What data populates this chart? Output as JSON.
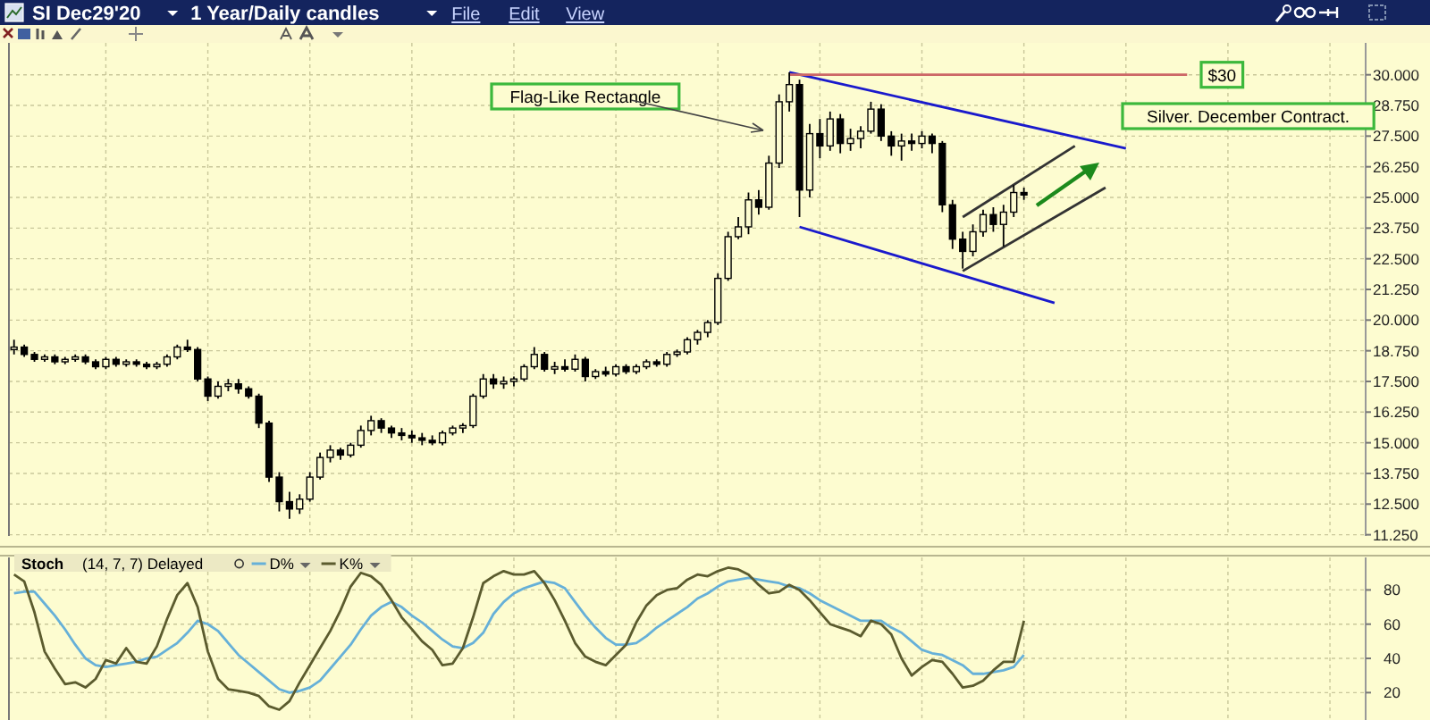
{
  "chart_data": [
    {
      "type": "candlestick",
      "title": "SI Dec29'20",
      "subtitle": "1 Year/Daily candles",
      "annotations": [
        "File",
        "Edit",
        "View",
        "Flag-Like Rectangle",
        {
          "text": "$30",
          "y": 30
        },
        "Silver. December Contract."
      ],
      "categories": [
        null,
        null,
        null,
        null,
        null,
        null,
        null,
        null,
        null,
        null,
        null,
        null,
        null,
        null,
        null,
        null,
        null,
        null,
        null,
        null,
        null,
        null,
        null,
        null,
        null,
        null,
        null,
        null,
        null,
        null,
        null,
        null,
        null,
        null,
        null,
        null,
        null,
        null,
        null,
        null,
        null,
        null,
        null,
        null,
        null,
        null,
        null,
        null,
        null,
        null,
        null,
        null,
        null,
        null,
        null,
        null,
        null,
        null,
        null,
        null,
        null,
        null,
        null,
        null,
        null,
        null,
        null,
        null,
        null,
        null,
        null,
        null,
        null,
        null,
        null,
        null,
        null,
        null,
        null,
        null,
        null,
        null,
        null,
        null,
        null,
        null,
        null,
        null,
        null,
        null,
        null,
        null,
        null,
        null,
        null,
        null,
        null,
        null,
        null,
        null,
        null,
        null,
        null,
        null,
        null,
        null,
        null,
        null,
        null,
        null,
        null,
        null,
        null,
        null,
        null,
        null,
        null,
        null,
        null,
        null,
        null,
        null,
        null,
        null,
        null,
        null,
        null,
        null,
        null,
        null,
        null,
        null,
        null
      ],
      "ohlc": [
        [
          18.8,
          19.2,
          18.6,
          18.9
        ],
        [
          18.9,
          19.0,
          18.5,
          18.6
        ],
        [
          18.6,
          18.7,
          18.3,
          18.4
        ],
        [
          18.4,
          18.6,
          18.3,
          18.5
        ],
        [
          18.5,
          18.6,
          18.2,
          18.3
        ],
        [
          18.3,
          18.5,
          18.2,
          18.4
        ],
        [
          18.4,
          18.6,
          18.3,
          18.5
        ],
        [
          18.5,
          18.6,
          18.2,
          18.3
        ],
        [
          18.3,
          18.4,
          18.0,
          18.1
        ],
        [
          18.1,
          18.5,
          18.0,
          18.4
        ],
        [
          18.4,
          18.5,
          18.1,
          18.2
        ],
        [
          18.2,
          18.4,
          18.1,
          18.3
        ],
        [
          18.3,
          18.4,
          18.1,
          18.2
        ],
        [
          18.2,
          18.3,
          18.0,
          18.1
        ],
        [
          18.1,
          18.3,
          18.0,
          18.2
        ],
        [
          18.2,
          18.6,
          18.1,
          18.5
        ],
        [
          18.5,
          19.0,
          18.4,
          18.9
        ],
        [
          18.9,
          19.2,
          18.7,
          18.8
        ],
        [
          18.8,
          18.9,
          17.5,
          17.6
        ],
        [
          17.6,
          17.7,
          16.7,
          16.9
        ],
        [
          16.9,
          17.5,
          16.8,
          17.3
        ],
        [
          17.3,
          17.6,
          17.1,
          17.4
        ],
        [
          17.4,
          17.6,
          17.0,
          17.2
        ],
        [
          17.2,
          17.3,
          16.8,
          16.9
        ],
        [
          16.9,
          17.0,
          15.6,
          15.8
        ],
        [
          15.8,
          15.9,
          13.4,
          13.6
        ],
        [
          13.6,
          13.8,
          12.2,
          12.6
        ],
        [
          12.6,
          13.0,
          11.9,
          12.3
        ],
        [
          12.3,
          12.9,
          12.1,
          12.7
        ],
        [
          12.7,
          13.8,
          12.6,
          13.6
        ],
        [
          13.6,
          14.6,
          13.5,
          14.4
        ],
        [
          14.4,
          14.9,
          14.2,
          14.7
        ],
        [
          14.7,
          14.8,
          14.3,
          14.5
        ],
        [
          14.5,
          15.0,
          14.4,
          14.9
        ],
        [
          14.9,
          15.7,
          14.8,
          15.5
        ],
        [
          15.5,
          16.1,
          15.3,
          15.9
        ],
        [
          15.9,
          16.0,
          15.4,
          15.6
        ],
        [
          15.6,
          15.7,
          15.2,
          15.4
        ],
        [
          15.4,
          15.6,
          15.1,
          15.3
        ],
        [
          15.3,
          15.5,
          15.0,
          15.2
        ],
        [
          15.2,
          15.4,
          14.9,
          15.1
        ],
        [
          15.1,
          15.3,
          14.9,
          15.0
        ],
        [
          15.0,
          15.5,
          14.9,
          15.4
        ],
        [
          15.4,
          15.7,
          15.3,
          15.6
        ],
        [
          15.6,
          15.8,
          15.4,
          15.7
        ],
        [
          15.7,
          17.0,
          15.6,
          16.9
        ],
        [
          16.9,
          17.8,
          16.8,
          17.6
        ],
        [
          17.6,
          17.8,
          17.2,
          17.4
        ],
        [
          17.4,
          17.7,
          17.2,
          17.5
        ],
        [
          17.5,
          17.7,
          17.3,
          17.6
        ],
        [
          17.6,
          18.2,
          17.5,
          18.1
        ],
        [
          18.1,
          18.9,
          18.0,
          18.6
        ],
        [
          18.6,
          18.7,
          17.9,
          18.0
        ],
        [
          18.0,
          18.3,
          17.8,
          18.1
        ],
        [
          18.1,
          18.4,
          17.9,
          18.0
        ],
        [
          18.0,
          18.6,
          17.9,
          18.4
        ],
        [
          18.4,
          18.5,
          17.5,
          17.7
        ],
        [
          17.7,
          18.0,
          17.6,
          17.9
        ],
        [
          17.9,
          18.1,
          17.7,
          17.8
        ],
        [
          17.8,
          18.2,
          17.7,
          18.1
        ],
        [
          18.1,
          18.2,
          17.8,
          17.9
        ],
        [
          17.9,
          18.2,
          17.8,
          18.1
        ],
        [
          18.1,
          18.4,
          18.0,
          18.3
        ],
        [
          18.3,
          18.4,
          18.1,
          18.2
        ],
        [
          18.2,
          18.7,
          18.1,
          18.6
        ],
        [
          18.6,
          18.8,
          18.5,
          18.7
        ],
        [
          18.7,
          19.3,
          18.6,
          19.2
        ],
        [
          19.2,
          19.6,
          19.0,
          19.5
        ],
        [
          19.5,
          20.0,
          19.3,
          19.9
        ],
        [
          19.9,
          21.9,
          19.8,
          21.7
        ],
        [
          21.7,
          23.6,
          21.6,
          23.4
        ],
        [
          23.4,
          24.2,
          23.3,
          23.8
        ],
        [
          23.8,
          25.2,
          23.5,
          24.9
        ],
        [
          24.9,
          25.3,
          24.3,
          24.6
        ],
        [
          24.6,
          26.7,
          24.5,
          26.4
        ],
        [
          26.4,
          29.2,
          26.2,
          28.9
        ],
        [
          28.9,
          30.1,
          28.5,
          29.6
        ],
        [
          29.6,
          29.8,
          24.2,
          25.3
        ],
        [
          25.3,
          28.0,
          25.0,
          27.6
        ],
        [
          27.6,
          28.2,
          26.6,
          27.1
        ],
        [
          27.1,
          28.5,
          26.9,
          28.2
        ],
        [
          28.2,
          28.4,
          26.8,
          27.2
        ],
        [
          27.2,
          27.8,
          26.9,
          27.4
        ],
        [
          27.4,
          27.9,
          27.0,
          27.7
        ],
        [
          27.7,
          28.9,
          27.6,
          28.6
        ],
        [
          28.6,
          28.8,
          27.3,
          27.5
        ],
        [
          27.5,
          27.7,
          26.7,
          27.1
        ],
        [
          27.1,
          27.6,
          26.5,
          27.3
        ],
        [
          27.3,
          27.6,
          26.9,
          27.2
        ],
        [
          27.2,
          27.7,
          27.0,
          27.5
        ],
        [
          27.5,
          27.6,
          26.8,
          27.2
        ],
        [
          27.2,
          27.3,
          24.4,
          24.7
        ],
        [
          24.7,
          24.9,
          22.9,
          23.3
        ],
        [
          23.3,
          23.6,
          22.1,
          22.8
        ],
        [
          22.8,
          23.9,
          22.6,
          23.6
        ],
        [
          23.6,
          24.5,
          23.4,
          24.3
        ],
        [
          24.3,
          24.6,
          23.6,
          23.9
        ],
        [
          23.9,
          24.7,
          23.0,
          24.4
        ],
        [
          24.4,
          25.5,
          24.2,
          25.2
        ],
        [
          25.2,
          25.4,
          24.9,
          25.1
        ],
        null,
        null,
        null,
        null,
        null,
        null,
        null,
        null,
        null,
        null,
        null,
        null,
        null,
        null,
        null,
        null,
        null,
        null,
        null,
        null,
        null,
        null,
        null,
        null,
        null,
        null,
        null,
        null,
        null,
        null,
        null,
        null,
        null
      ],
      "series": [
        {
          "type": "line",
          "color": "#1a1acc",
          "values": [
            null,
            null,
            null,
            null,
            null,
            null,
            null,
            null,
            null,
            null,
            null,
            null,
            null,
            null,
            null,
            null,
            null,
            null,
            null,
            null,
            null,
            null,
            null,
            null,
            null,
            null,
            null,
            null,
            null,
            null,
            null,
            null,
            null,
            null,
            null,
            null,
            null,
            null,
            null,
            null,
            null,
            null,
            null,
            null,
            null,
            null,
            null,
            null,
            null,
            null,
            null,
            null,
            null,
            null,
            null,
            null,
            null,
            null,
            null,
            null,
            null,
            null,
            null,
            null,
            null,
            null,
            null,
            null,
            null,
            null,
            null,
            null,
            null,
            null,
            null,
            null,
            30.1,
            null,
            null,
            null,
            null,
            null,
            null,
            null,
            null,
            null,
            null,
            null,
            null,
            null,
            null,
            null,
            null,
            null,
            null,
            null,
            null,
            null,
            null,
            null,
            null,
            null,
            null,
            null,
            null,
            null,
            null,
            null,
            null,
            27.0,
            null,
            null,
            null,
            null,
            null,
            null,
            null,
            null,
            null,
            null,
            null,
            null,
            null,
            null,
            null,
            null,
            null,
            null,
            null,
            null,
            null,
            null,
            null
          ]
        },
        {
          "type": "line",
          "color": "#1a1acc",
          "values": [
            null,
            null,
            null,
            null,
            null,
            null,
            null,
            null,
            null,
            null,
            null,
            null,
            null,
            null,
            null,
            null,
            null,
            null,
            null,
            null,
            null,
            null,
            null,
            null,
            null,
            null,
            null,
            null,
            null,
            null,
            null,
            null,
            null,
            null,
            null,
            null,
            null,
            null,
            null,
            null,
            null,
            null,
            null,
            null,
            null,
            null,
            null,
            null,
            null,
            null,
            null,
            null,
            null,
            null,
            null,
            null,
            null,
            null,
            null,
            null,
            null,
            null,
            null,
            null,
            null,
            null,
            null,
            null,
            null,
            null,
            null,
            null,
            null,
            null,
            null,
            null,
            null,
            23.8,
            null,
            null,
            null,
            null,
            null,
            null,
            null,
            null,
            null,
            null,
            null,
            null,
            null,
            null,
            null,
            null,
            null,
            null,
            null,
            null,
            null,
            null,
            null,
            null,
            20.7,
            null,
            null,
            null,
            null,
            null,
            null,
            null,
            null,
            null,
            null,
            null,
            null,
            null,
            null,
            null,
            null,
            null,
            null,
            null,
            null,
            null,
            null,
            null,
            null,
            null,
            null,
            null,
            null,
            null,
            null
          ]
        },
        {
          "type": "line",
          "color": "#333333",
          "values": [
            null,
            null,
            null,
            null,
            null,
            null,
            null,
            null,
            null,
            null,
            null,
            null,
            null,
            null,
            null,
            null,
            null,
            null,
            null,
            null,
            null,
            null,
            null,
            null,
            null,
            null,
            null,
            null,
            null,
            null,
            null,
            null,
            null,
            null,
            null,
            null,
            null,
            null,
            null,
            null,
            null,
            null,
            null,
            null,
            null,
            null,
            null,
            null,
            null,
            null,
            null,
            null,
            null,
            null,
            null,
            null,
            null,
            null,
            null,
            null,
            null,
            null,
            null,
            null,
            null,
            null,
            null,
            null,
            null,
            null,
            null,
            null,
            null,
            null,
            null,
            null,
            null,
            null,
            null,
            null,
            null,
            null,
            null,
            null,
            null,
            null,
            null,
            null,
            null,
            null,
            null,
            null,
            null,
            22.0,
            null,
            null,
            null,
            null,
            null,
            null,
            null,
            null,
            null,
            null,
            null,
            null,
            null,
            25.4,
            null,
            null,
            null,
            null,
            null,
            null,
            null,
            null,
            null,
            null,
            null,
            null,
            null,
            null,
            null,
            null,
            null,
            null,
            null,
            null,
            null,
            null,
            null,
            null,
            null
          ]
        },
        {
          "type": "line",
          "color": "#333333",
          "values": [
            null,
            null,
            null,
            null,
            null,
            null,
            null,
            null,
            null,
            null,
            null,
            null,
            null,
            null,
            null,
            null,
            null,
            null,
            null,
            null,
            null,
            null,
            null,
            null,
            null,
            null,
            null,
            null,
            null,
            null,
            null,
            null,
            null,
            null,
            null,
            null,
            null,
            null,
            null,
            null,
            null,
            null,
            null,
            null,
            null,
            null,
            null,
            null,
            null,
            null,
            null,
            null,
            null,
            null,
            null,
            null,
            null,
            null,
            null,
            null,
            null,
            null,
            null,
            null,
            null,
            null,
            null,
            null,
            null,
            null,
            null,
            null,
            null,
            null,
            null,
            null,
            null,
            null,
            null,
            null,
            null,
            null,
            null,
            null,
            null,
            null,
            null,
            null,
            null,
            null,
            null,
            null,
            null,
            24.2,
            null,
            null,
            null,
            null,
            null,
            null,
            null,
            null,
            null,
            null,
            27.1,
            null,
            null,
            null,
            null,
            null,
            null,
            null,
            null,
            null,
            null,
            null,
            null,
            null,
            null,
            null,
            null,
            null,
            null,
            null,
            null,
            null,
            null,
            null,
            null,
            null,
            null,
            null,
            null
          ]
        },
        {
          "type": "line",
          "color": "#cc6666",
          "values": [
            null,
            null,
            null,
            null,
            null,
            null,
            null,
            null,
            null,
            null,
            null,
            null,
            null,
            null,
            null,
            null,
            null,
            null,
            null,
            null,
            null,
            null,
            null,
            null,
            null,
            null,
            null,
            null,
            null,
            null,
            null,
            null,
            null,
            null,
            null,
            null,
            null,
            null,
            null,
            null,
            null,
            null,
            null,
            null,
            null,
            null,
            null,
            null,
            null,
            null,
            null,
            null,
            null,
            null,
            null,
            null,
            null,
            null,
            null,
            null,
            null,
            null,
            null,
            null,
            null,
            null,
            null,
            null,
            null,
            null,
            null,
            null,
            null,
            null,
            null,
            null,
            30.0,
            null,
            null,
            null,
            null,
            null,
            null,
            null,
            null,
            null,
            null,
            null,
            null,
            null,
            null,
            null,
            null,
            null,
            null,
            null,
            null,
            null,
            null,
            null,
            null,
            null,
            null,
            null,
            null,
            null,
            null,
            null,
            null,
            null,
            null,
            null,
            null,
            null,
            null,
            30.0,
            null,
            null,
            null,
            null,
            null,
            null,
            null,
            null,
            null,
            null,
            null,
            null,
            null,
            null,
            null,
            null,
            null
          ]
        }
      ],
      "ylim": [
        11.2,
        31.3
      ],
      "yticks": [
        {
          "value": 11.25,
          "label": "11.250"
        },
        {
          "value": 12.5,
          "label": "12.500"
        },
        {
          "value": 13.75,
          "label": "13.750"
        },
        {
          "value": 15,
          "label": "15.000"
        },
        {
          "value": 16.25,
          "label": "16.250"
        },
        {
          "value": 17.5,
          "label": "17.500"
        },
        {
          "value": 18.75,
          "label": "18.750"
        },
        {
          "value": 20,
          "label": "20.000"
        },
        {
          "value": 21.25,
          "label": "21.250"
        },
        {
          "value": 22.5,
          "label": "22.500"
        },
        {
          "value": 23.75,
          "label": "23.750"
        },
        {
          "value": 25,
          "label": "25.000"
        },
        {
          "value": 26.25,
          "label": "26.250"
        },
        {
          "value": 27.5,
          "label": "27.500"
        },
        {
          "value": 28.75,
          "label": "28.750"
        },
        {
          "value": 30,
          "label": "30.000"
        }
      ],
      "tick_labels": "y",
      "grid": true
    },
    {
      "type": "line",
      "title": "Stoch",
      "subtitle": "(14, 7, 7) Delayed",
      "legend": "top left",
      "categories": [
        null,
        null,
        null,
        null,
        null,
        null,
        null,
        null,
        null,
        null,
        null,
        null,
        null,
        null,
        null,
        null,
        null,
        null,
        null,
        null,
        null,
        null,
        null,
        null,
        null,
        null,
        null,
        null,
        null,
        null,
        null,
        null,
        null,
        null,
        null,
        null,
        null,
        null,
        null,
        null,
        null,
        null,
        null,
        null,
        null,
        null,
        null,
        null,
        null,
        null,
        null,
        null,
        null,
        null,
        null,
        null,
        null,
        null,
        null,
        null,
        null,
        null,
        null,
        null,
        null,
        null,
        null,
        null,
        null,
        null,
        null,
        null,
        null,
        null,
        null,
        null,
        null,
        null,
        null,
        null,
        null,
        null,
        null,
        null,
        null,
        null,
        null,
        null,
        null,
        null,
        null,
        null,
        null,
        null,
        null,
        null,
        null,
        null,
        null,
        null,
        null,
        null,
        null,
        null,
        null,
        null,
        null,
        null,
        null,
        null,
        null,
        null,
        null,
        null,
        null,
        null,
        null,
        null,
        null,
        null,
        null,
        null,
        null,
        null,
        null,
        null,
        null,
        null,
        null,
        null,
        null,
        null,
        null
      ],
      "series": [
        {
          "name": "D%",
          "color": "#66b0d8",
          "values": [
            78,
            79,
            79,
            72,
            65,
            57,
            48,
            40,
            36,
            35,
            36,
            37,
            38,
            40,
            41,
            45,
            49,
            55,
            62,
            60,
            56,
            49,
            42,
            37,
            32,
            27,
            22,
            20,
            21,
            23,
            27,
            34,
            41,
            48,
            57,
            65,
            70,
            73,
            70,
            65,
            61,
            56,
            51,
            47,
            46,
            49,
            55,
            66,
            73,
            78,
            81,
            83,
            85,
            84,
            81,
            73,
            65,
            58,
            52,
            48,
            48,
            49,
            53,
            58,
            62,
            66,
            70,
            75,
            78,
            82,
            85,
            86,
            87,
            86,
            85,
            84,
            82,
            81,
            78,
            74,
            71,
            68,
            65,
            62,
            62,
            62,
            58,
            55,
            50,
            45,
            43,
            42,
            39,
            36,
            31,
            31,
            32,
            33,
            35,
            42,
            null,
            null,
            null,
            null,
            null,
            null,
            null,
            null,
            null,
            null,
            null,
            null,
            null,
            null,
            null,
            null,
            null,
            null,
            null,
            null,
            null,
            null,
            null,
            null,
            null,
            null,
            null,
            null,
            null,
            null,
            null,
            null,
            null
          ]
        },
        {
          "name": "K%",
          "color": "#5b5b2e",
          "values": [
            89,
            85,
            67,
            44,
            34,
            25,
            26,
            23,
            28,
            39,
            37,
            46,
            38,
            37,
            47,
            63,
            77,
            84,
            70,
            44,
            28,
            22,
            21,
            20,
            18,
            12,
            10,
            15,
            26,
            36,
            46,
            56,
            68,
            82,
            90,
            88,
            83,
            74,
            64,
            57,
            50,
            45,
            36,
            37,
            46,
            64,
            84,
            88,
            91,
            89,
            89,
            91,
            84,
            74,
            62,
            49,
            41,
            38,
            36,
            42,
            48,
            61,
            71,
            77,
            80,
            81,
            86,
            89,
            88,
            91,
            93,
            92,
            89,
            83,
            78,
            79,
            83,
            80,
            74,
            67,
            60,
            58,
            56,
            53,
            62,
            60,
            54,
            40,
            30,
            35,
            39,
            38,
            31,
            23,
            24,
            27,
            33,
            38,
            38,
            62,
            null,
            null,
            null,
            null,
            null,
            null,
            null,
            null,
            null,
            null,
            null,
            null,
            null,
            null,
            null,
            null,
            null,
            null,
            null,
            null,
            null,
            null,
            null,
            null,
            null,
            null,
            null,
            null,
            null,
            null,
            null,
            null,
            null
          ]
        }
      ],
      "ylim": [
        4,
        99
      ],
      "yticks": [
        20,
        40,
        60,
        80
      ],
      "tick_labels": "y",
      "grid": true
    }
  ]
}
